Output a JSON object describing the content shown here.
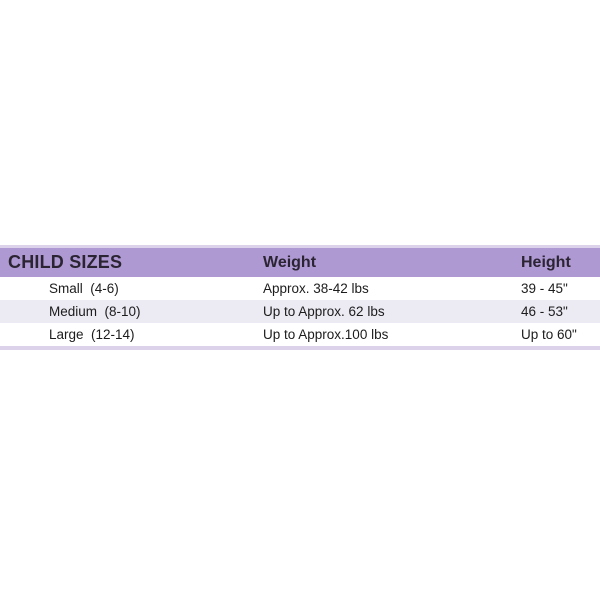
{
  "chart_data": {
    "type": "table",
    "title": "CHILD SIZES",
    "columns": [
      "CHILD SIZES",
      "Weight",
      "Height"
    ],
    "rows": [
      [
        "Small  (4-6)",
        "Approx. 38-42 lbs",
        "39 - 45\""
      ],
      [
        "Medium  (8-10)",
        "Up to Approx. 62 lbs",
        "46 - 53\""
      ],
      [
        "Large  (12-14)",
        "Up to Approx.100 lbs",
        "Up to 60\""
      ]
    ],
    "layout_hints": {
      "header_position": "top",
      "alternating_row_shading": true,
      "grid": "off"
    }
  },
  "colors": {
    "header_bg": "#af99d3",
    "header_text": "#2b2533",
    "stripe": "#dcd2e9",
    "row_alt_bg": "#eceaf3",
    "body_text": "#1c1c1c",
    "page_bg": "#ffffff"
  }
}
